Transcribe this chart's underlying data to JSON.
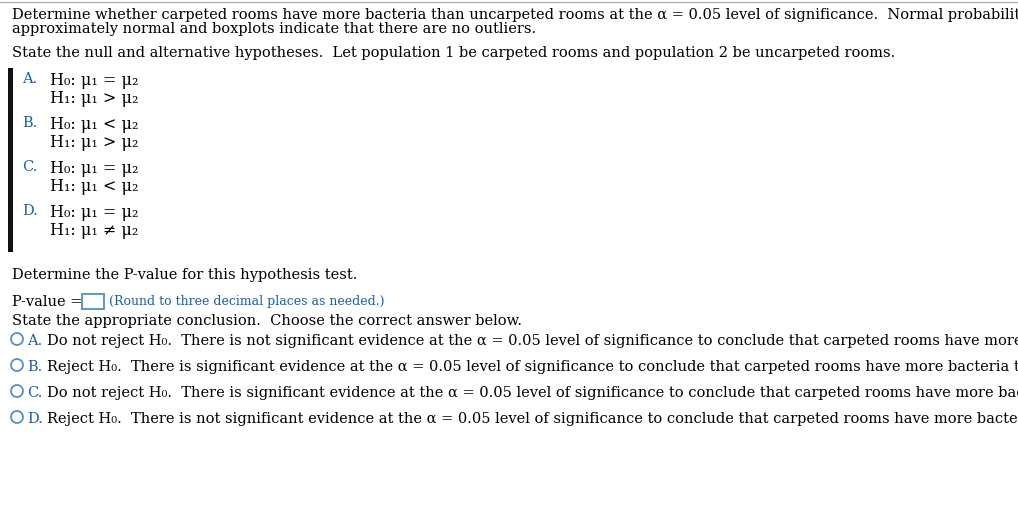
{
  "bg_color": "#ffffff",
  "top_border_color": "#b0b0b0",
  "intro_line1": "Determine whether carpeted rooms have more bacteria than uncarpeted rooms at the α = 0.05 level of significance.  Normal probability plots indicate that the data are",
  "intro_line2": "approximately normal and boxplots indicate that there are no outliers.",
  "state_hyp_text": "State the null and alternative hypotheses.  Let population 1 be carpeted rooms and population 2 be uncarpeted rooms.",
  "options_hyp": [
    {
      "letter": "A.",
      "h0": "H₀: μ₁ = μ₂",
      "h1": "H₁: μ₁ > μ₂"
    },
    {
      "letter": "B.",
      "h0": "H₀: μ₁ < μ₂",
      "h1": "H₁: μ₁ > μ₂"
    },
    {
      "letter": "C.",
      "h0": "H₀: μ₁ = μ₂",
      "h1": "H₁: μ₁ < μ₂"
    },
    {
      "letter": "D.",
      "h0": "H₀: μ₁ = μ₂",
      "h1": "H₁: μ₁ ≠ μ₂"
    }
  ],
  "det_pval_text": "Determine the P-value for this hypothesis test.",
  "pvalue_label": "P-value = ",
  "pvalue_hint": "(Round to three decimal places as needed.)",
  "pvalue_hint_color": "#1a5fa8",
  "conclusion_intro": "State the appropriate conclusion.  Choose the correct answer below.",
  "options_conc": [
    {
      "letter": "A.",
      "h0sub": "H₀",
      "pre": "Do not reject ",
      "post": "  There is not significant evidence at the α = 0.05 level of significance to conclude that carpeted rooms have more bacteria than uncarpeted rooms."
    },
    {
      "letter": "B.",
      "h0sub": "H₀",
      "pre": "Reject ",
      "post": "  There is significant evidence at the α = 0.05 level of significance to conclude that carpeted rooms have more bacteria than uncarpeted rooms."
    },
    {
      "letter": "C.",
      "h0sub": "H₀",
      "pre": "Do not reject ",
      "post": "  There is significant evidence at the α = 0.05 level of significance to conclude that carpeted rooms have more bacteria than uncarpeted rooms."
    },
    {
      "letter": "D.",
      "h0sub": "H₀",
      "pre": "Reject ",
      "post": "  There is not significant evidence at the α = 0.05 level of significance to conclude that carpeted rooms have more bacteria than uncarpeted rooms."
    }
  ],
  "letter_color": "#1a5fa8",
  "font_size": 10.5,
  "font_size_hyp": 11.5,
  "font_family": "DejaVu Serif",
  "text_color": "#000000",
  "bar_color": "#111111",
  "circle_color": "#5a8fc4",
  "input_box_color": "#6699bb"
}
